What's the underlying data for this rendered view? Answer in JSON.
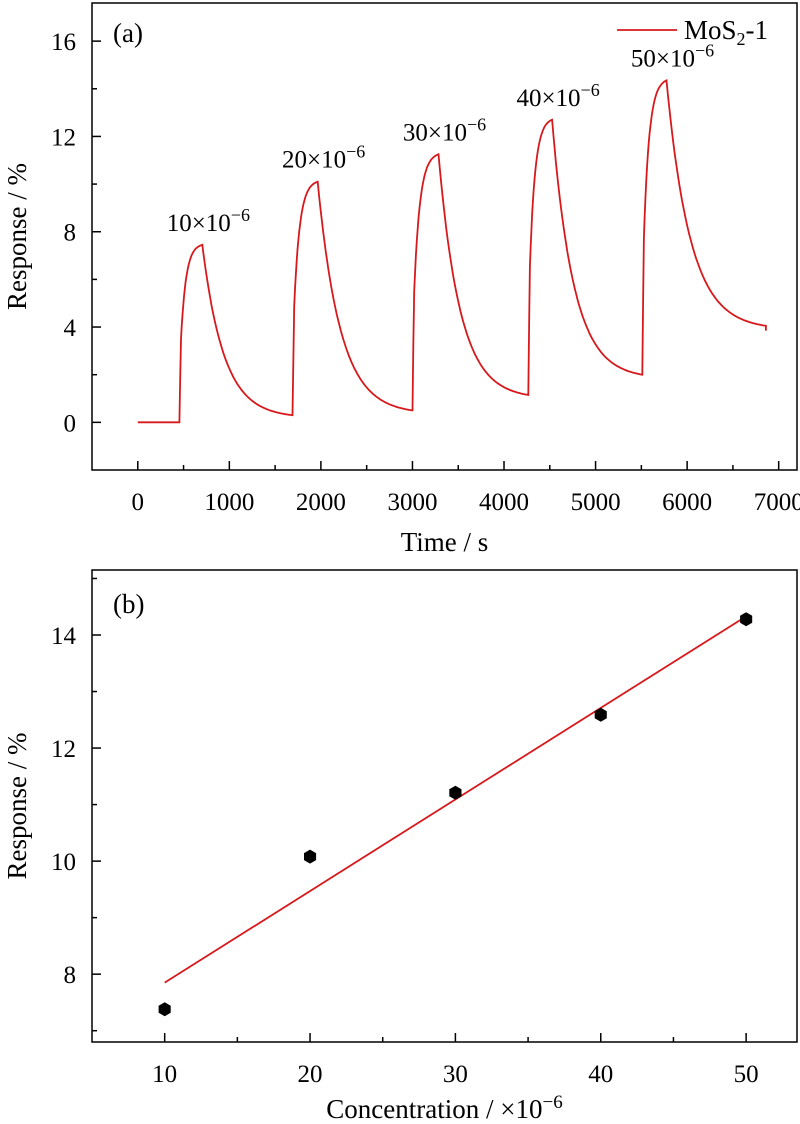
{
  "chart_data": [
    {
      "type": "line",
      "panel_label": "(a)",
      "xlabel": "Time / s",
      "ylabel": "Response / %",
      "xlim": [
        -500,
        7200
      ],
      "ylim": [
        -2,
        17.6
      ],
      "x_ticks": [
        0,
        1000,
        2000,
        3000,
        4000,
        5000,
        6000,
        7000
      ],
      "y_ticks": [
        0,
        4,
        8,
        12,
        16
      ],
      "x_tick_labels": [
        "0",
        "1000",
        "2000",
        "3000",
        "4000",
        "5000",
        "6000",
        "7000"
      ],
      "y_tick_labels": [
        "0",
        "4",
        "8",
        "12",
        "16"
      ],
      "minor_x_ticks": true,
      "minor_y_ticks": true,
      "grid": false,
      "legend": {
        "position": "top-right",
        "entries": [
          {
            "text": "MoS",
            "sub": "2",
            "suffix": "-1"
          }
        ]
      },
      "series": [
        {
          "name": "MoS2-1",
          "color": "#d7191c",
          "baseline": {
            "x0": 0,
            "x1": 455,
            "y": 0.0
          },
          "cycles": [
            {
              "on": 455,
              "peak": 705,
              "y0": 0.0,
              "ypeak": 7.45,
              "end": 1690,
              "yend": 0.3
            },
            {
              "on": 1690,
              "peak": 1965,
              "y0": 0.3,
              "ypeak": 10.1,
              "end": 3000,
              "yend": 0.5
            },
            {
              "on": 3000,
              "peak": 3285,
              "y0": 0.5,
              "ypeak": 11.25,
              "end": 4265,
              "yend": 1.15
            },
            {
              "on": 4265,
              "peak": 4525,
              "y0": 1.15,
              "ypeak": 12.7,
              "end": 5510,
              "yend": 2.0
            },
            {
              "on": 5510,
              "peak": 5775,
              "y0": 2.0,
              "ypeak": 14.35,
              "end": 6860,
              "yend": 4.05
            }
          ],
          "tail": {
            "x": 6860,
            "y": 3.85
          }
        }
      ],
      "annotations": [
        {
          "base": "10×10",
          "exp": "−6",
          "x": 705,
          "y": 7.45
        },
        {
          "base": "20×10",
          "exp": "−6",
          "x": 1965,
          "y": 10.1
        },
        {
          "base": "30×10",
          "exp": "−6",
          "x": 3285,
          "y": 11.25
        },
        {
          "base": "40×10",
          "exp": "−6",
          "x": 4525,
          "y": 12.7
        },
        {
          "base": "50×10",
          "exp": "−6",
          "x": 5775,
          "y": 14.35
        }
      ]
    },
    {
      "type": "scatter",
      "panel_label": "(b)",
      "xlabel_base": "Concentration / ×10",
      "xlabel_exp": "−6",
      "ylabel": "Response / %",
      "xlim": [
        5,
        53.5
      ],
      "ylim": [
        6.8,
        15.15
      ],
      "x_ticks": [
        10,
        20,
        30,
        40,
        50
      ],
      "y_ticks": [
        8,
        10,
        12,
        14
      ],
      "x_tick_labels": [
        "10",
        "20",
        "30",
        "40",
        "50"
      ],
      "y_tick_labels": [
        "8",
        "10",
        "12",
        "14"
      ],
      "minor_x_ticks": true,
      "minor_y_ticks": true,
      "grid": false,
      "points": {
        "x": [
          10,
          20,
          30,
          40,
          50
        ],
        "y": [
          7.38,
          10.08,
          11.21,
          12.59,
          14.28
        ],
        "color": "#000000"
      },
      "fit_line": {
        "x": [
          10,
          50
        ],
        "y": [
          7.85,
          14.33
        ],
        "color": "#d7191c"
      }
    }
  ]
}
